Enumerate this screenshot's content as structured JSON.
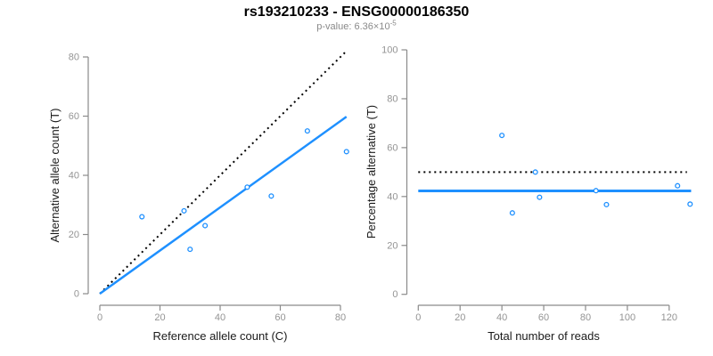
{
  "header": {
    "title": "rs193210233 - ENSG00000186350",
    "p_label": "p-value: ",
    "p_mantissa": "6.36",
    "p_base": "×10",
    "p_exponent": "-5"
  },
  "palette": {
    "blue": "#1E90FF",
    "black": "#000000",
    "axis_line": "#8a8a8a",
    "tick_label": "#949494",
    "axis_title": "#1a1a1a",
    "subtitle_gray": "#8a8a8a",
    "background": "#ffffff"
  },
  "chart_data": [
    {
      "type": "scatter",
      "name": "allele-count-scatter",
      "xlabel": "Reference allele count (C)",
      "ylabel": "Alternative allele count (T)",
      "xlim": [
        0,
        82.5
      ],
      "ylim": [
        0,
        81.5
      ],
      "xticks": [
        0,
        20,
        40,
        60,
        80
      ],
      "yticks": [
        0,
        20,
        40,
        60,
        80
      ],
      "grid": false,
      "legend": null,
      "points": [
        [
          14,
          26
        ],
        [
          28,
          28
        ],
        [
          30,
          15
        ],
        [
          35,
          23
        ],
        [
          49,
          36
        ],
        [
          57,
          33
        ],
        [
          69,
          55
        ],
        [
          82,
          48
        ]
      ],
      "lines": [
        {
          "name": "identity-line",
          "dash": "dotted",
          "color": "black",
          "width": 2,
          "x1": 0,
          "y1": 0,
          "x2": 81.5,
          "y2": 81.5
        },
        {
          "name": "fit-line",
          "dash": "solid",
          "color": "blue",
          "width": 2.5,
          "x1": 0,
          "y1": 0,
          "x2": 82,
          "y2": 59.8
        }
      ]
    },
    {
      "type": "scatter",
      "name": "percentage-scatter",
      "xlabel": "Total number of reads",
      "ylabel": "Percentage alternative (T)",
      "xlim": [
        0,
        131
      ],
      "ylim": [
        0,
        101
      ],
      "xticks": [
        0,
        20,
        40,
        60,
        80,
        100,
        120
      ],
      "yticks": [
        0,
        20,
        40,
        60,
        80,
        100
      ],
      "grid": false,
      "legend": null,
      "points": [
        [
          40,
          65
        ],
        [
          45,
          33.3
        ],
        [
          56,
          50
        ],
        [
          58,
          39.7
        ],
        [
          85,
          42.4
        ],
        [
          90,
          36.7
        ],
        [
          124,
          44.4
        ],
        [
          130,
          36.9
        ]
      ],
      "lines": [
        {
          "name": "expected-50pct-line",
          "dash": "dotted",
          "color": "black",
          "width": 2,
          "x1": 0,
          "y1": 50,
          "x2": 128.5,
          "y2": 50
        },
        {
          "name": "observed-mean-line",
          "dash": "solid",
          "color": "blue",
          "width": 3,
          "x1": 0,
          "y1": 42.3,
          "x2": 130.5,
          "y2": 42.3
        }
      ]
    }
  ]
}
